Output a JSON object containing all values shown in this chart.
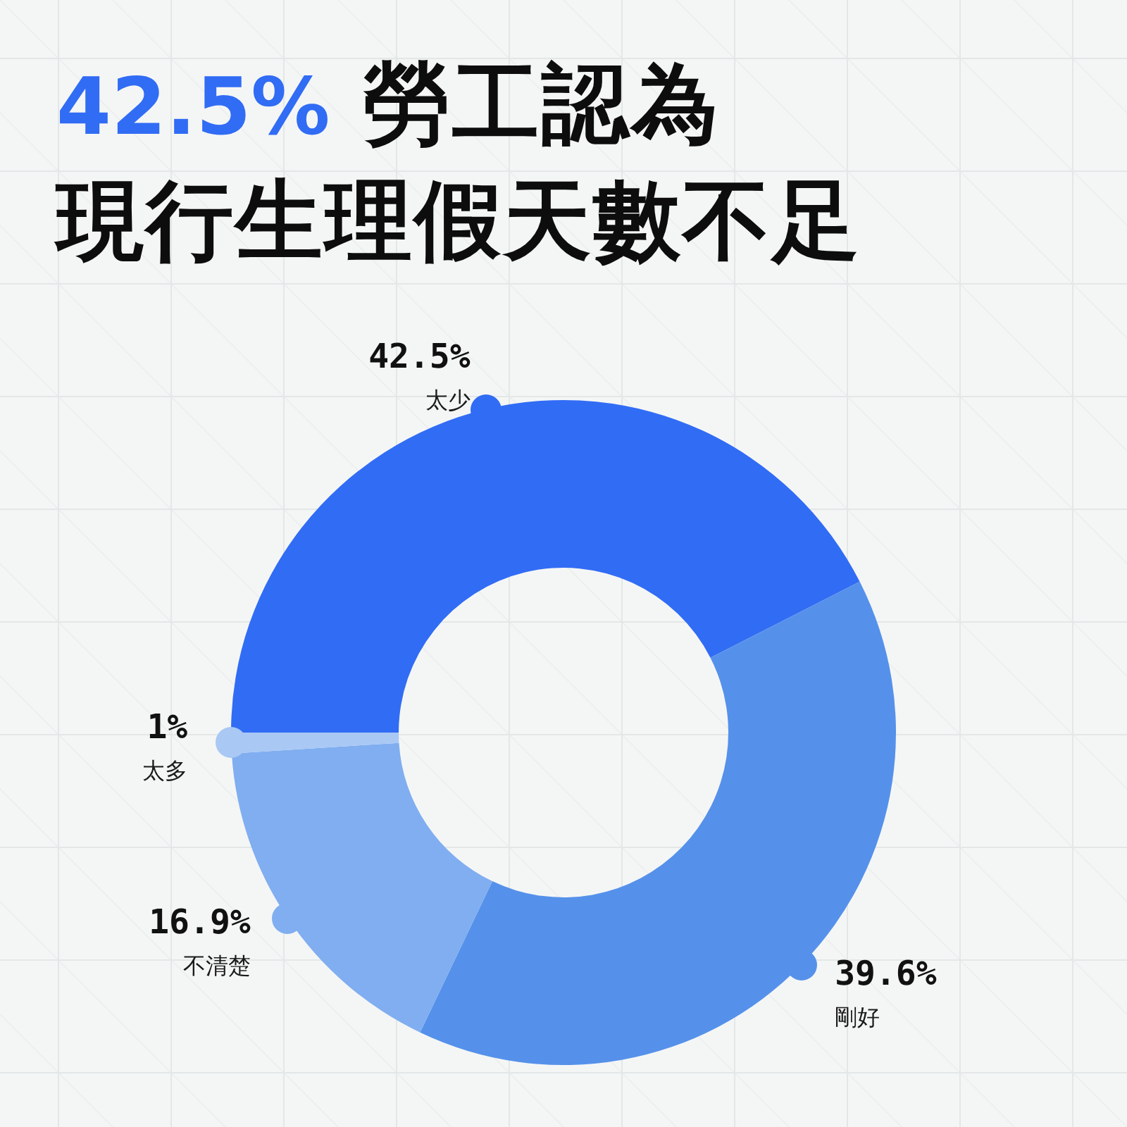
{
  "chart_data": {
    "type": "donut",
    "title": "42.5% 勞工認為",
    "subtitle": "現行生理假天數不足",
    "categories": [
      "太少",
      "剛好",
      "不清楚",
      "太多"
    ],
    "values": [
      42.5,
      39.6,
      16.9,
      1
    ],
    "colors": [
      "#316cf4",
      "#5591ea",
      "#80aef0",
      "#a9c8f4"
    ],
    "value_labels": [
      "42.5%",
      "39.6%",
      "16.9%",
      "1%"
    ]
  }
}
